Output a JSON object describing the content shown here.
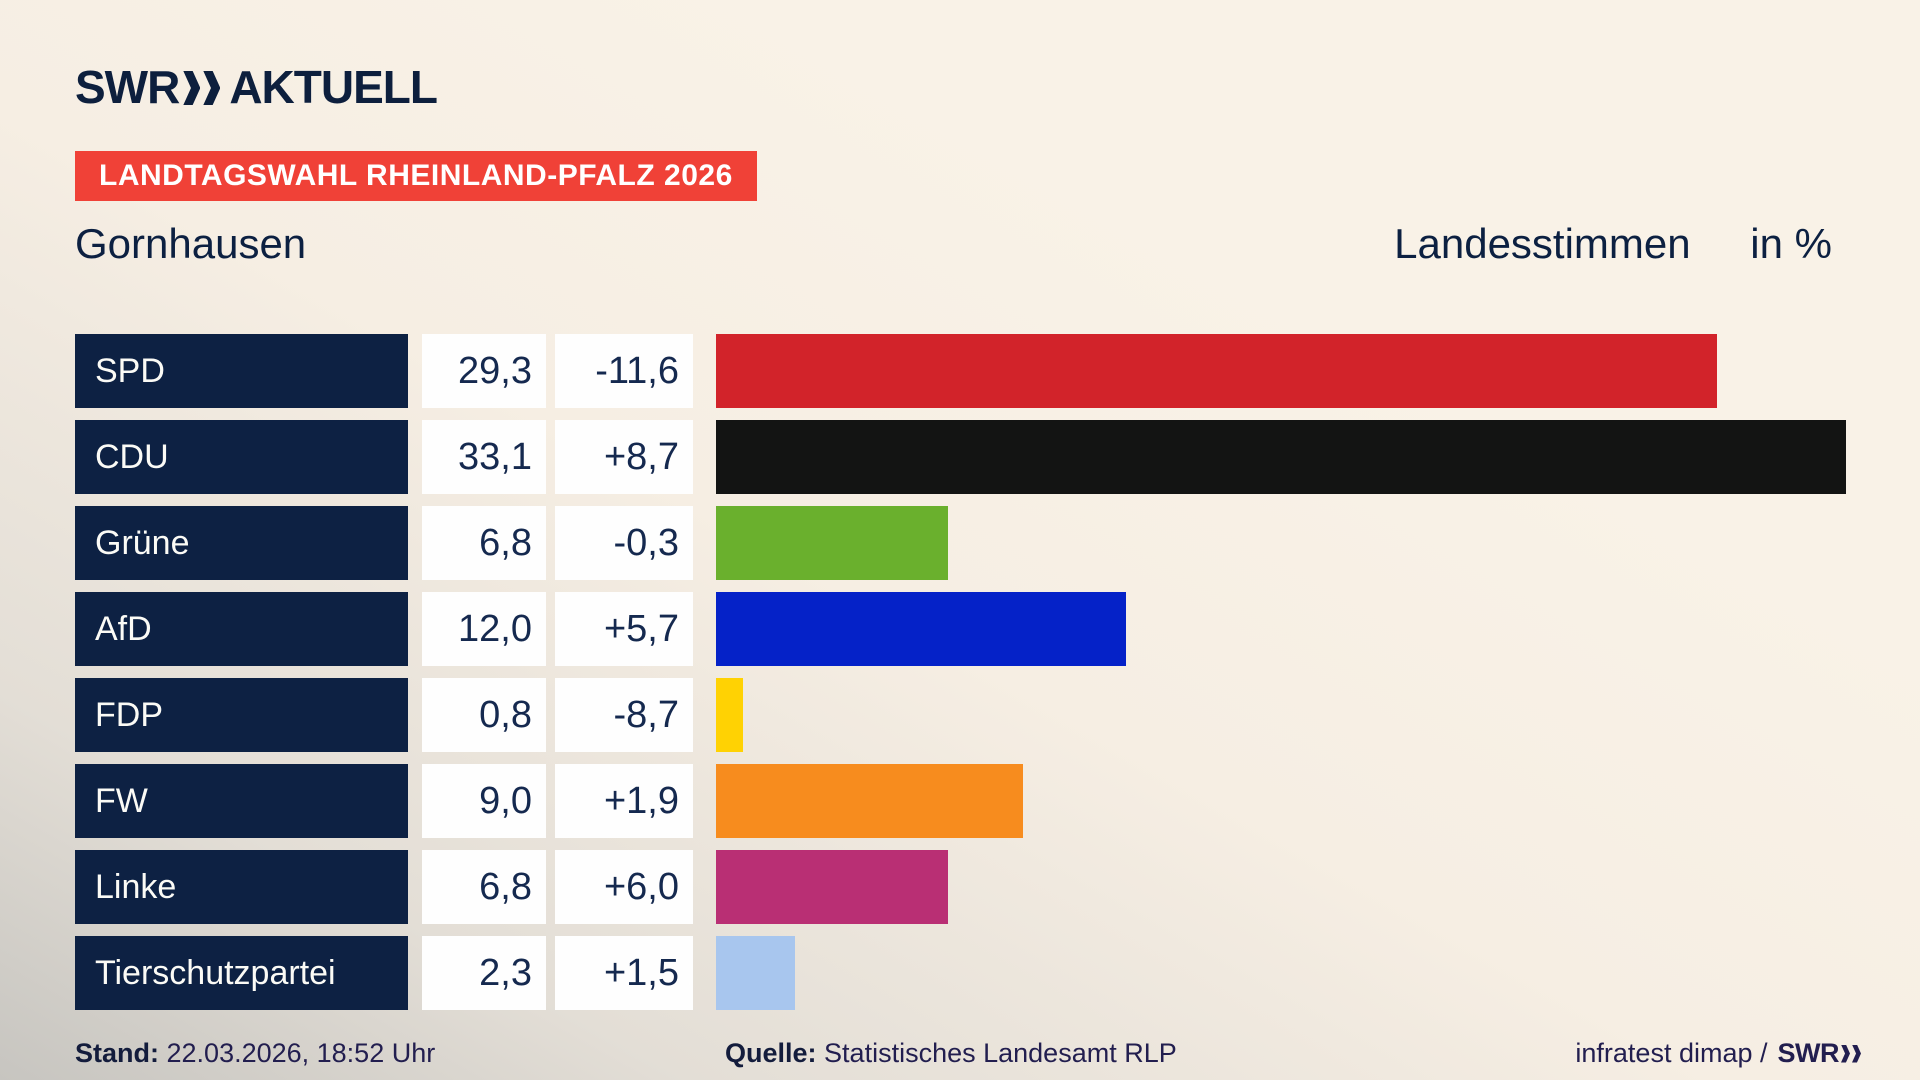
{
  "header": {
    "brand": {
      "logo_text": "SWR",
      "logo_suffix": "AKTUELL"
    },
    "banner": "LANDTAGSWAHL RHEINLAND-PFALZ 2026",
    "title_left": "Gornhausen",
    "title_right": "Landesstimmen",
    "title_unit": "in %"
  },
  "chart_data": {
    "type": "bar",
    "orientation": "horizontal",
    "title": "Landesstimmen in %",
    "categories": [
      "SPD",
      "CDU",
      "Grüne",
      "AfD",
      "FDP",
      "FW",
      "Linke",
      "Tierschutzpartei"
    ],
    "values": [
      29.3,
      33.1,
      6.8,
      12.0,
      0.8,
      9.0,
      6.8,
      2.3
    ],
    "changes": [
      -11.6,
      8.7,
      -0.3,
      5.7,
      -8.7,
      1.9,
      6.0,
      1.5
    ],
    "xlim": [
      0,
      33.5
    ],
    "grid": false,
    "legend": "none",
    "parties": [
      {
        "name": "SPD",
        "value_label": "29,3",
        "change_label": "-11,6",
        "value": 29.3,
        "color": "#d2232a"
      },
      {
        "name": "CDU",
        "value_label": "33,1",
        "change_label": "+8,7",
        "value": 33.1,
        "color": "#131413"
      },
      {
        "name": "Grüne",
        "value_label": "6,8",
        "change_label": "-0,3",
        "value": 6.8,
        "color": "#6ab02d"
      },
      {
        "name": "AfD",
        "value_label": "12,0",
        "change_label": "+5,7",
        "value": 12.0,
        "color": "#0522c8"
      },
      {
        "name": "FDP",
        "value_label": "0,8",
        "change_label": "-8,7",
        "value": 0.8,
        "color": "#ffd203"
      },
      {
        "name": "FW",
        "value_label": "9,0",
        "change_label": "+1,9",
        "value": 9.0,
        "color": "#f78c1e"
      },
      {
        "name": "Linke",
        "value_label": "6,8",
        "change_label": "+6,0",
        "value": 6.8,
        "color": "#b92f74"
      },
      {
        "name": "Tierschutzpartei",
        "value_label": "2,3",
        "change_label": "+1,5",
        "value": 2.3,
        "color": "#a8c6ee"
      }
    ]
  },
  "footer": {
    "stand_label": "Stand:",
    "stand_value": "22.03.2026, 18:52 Uhr",
    "quelle_label": "Quelle:",
    "quelle_value": "Statistisches Landesamt RLP",
    "credit_text": "infratest dimap /",
    "credit_brand": "SWR"
  },
  "icons": {
    "brand_chevron": "double-chevron-right"
  },
  "colors": {
    "banner_red": "#f04137",
    "navy_box": "#0d2143",
    "value_text": "#15294f",
    "footer_text": "#221e4f",
    "background_cream": "#f8f1e6",
    "background_gray": "#c7c5c0"
  }
}
